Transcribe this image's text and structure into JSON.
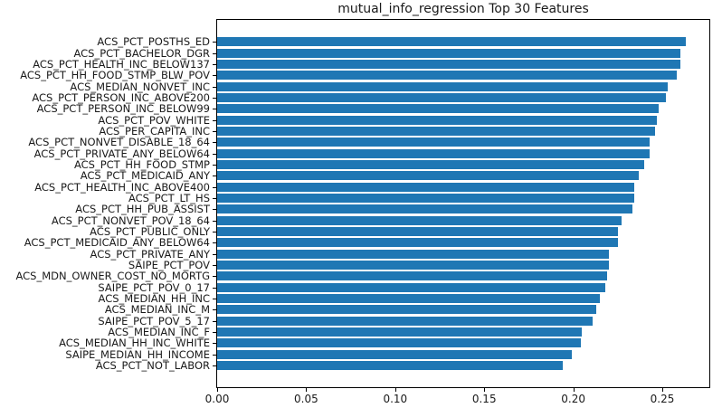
{
  "chart_data": {
    "type": "bar",
    "orientation": "horizontal",
    "title": "mutual_info_regression Top 30 Features",
    "xlabel": "",
    "ylabel": "",
    "grid": false,
    "legend": null,
    "bar_color": "#1f77b4",
    "xlim": [
      0,
      0.2764
    ],
    "xtick_labels": [
      "0.00",
      "0.05",
      "0.10",
      "0.15",
      "0.20",
      "0.25"
    ],
    "xtick_values": [
      0.0,
      0.05,
      0.1,
      0.15,
      0.2,
      0.25
    ],
    "categories": [
      "ACS_PCT_POSTHS_ED",
      "ACS_PCT_BACHELOR_DGR",
      "ACS_PCT_HEALTH_INC_BELOW137",
      "ACS_PCT_HH_FOOD_STMP_BLW_POV",
      "ACS_MEDIAN_NONVET_INC",
      "ACS_PCT_PERSON_INC_ABOVE200",
      "ACS_PCT_PERSON_INC_BELOW99",
      "ACS_PCT_POV_WHITE",
      "ACS_PER_CAPITA_INC",
      "ACS_PCT_NONVET_DISABLE_18_64",
      "ACS_PCT_PRIVATE_ANY_BELOW64",
      "ACS_PCT_HH_FOOD_STMP",
      "ACS_PCT_MEDICAID_ANY",
      "ACS_PCT_HEALTH_INC_ABOVE400",
      "ACS_PCT_LT_HS",
      "ACS_PCT_HH_PUB_ASSIST",
      "ACS_PCT_NONVET_POV_18_64",
      "ACS_PCT_PUBLIC_ONLY",
      "ACS_PCT_MEDICAID_ANY_BELOW64",
      "ACS_PCT_PRIVATE_ANY",
      "SAIPE_PCT_POV",
      "ACS_MDN_OWNER_COST_NO_MORTG",
      "SAIPE_PCT_POV_0_17",
      "ACS_MEDIAN_HH_INC",
      "ACS_MEDIAN_INC_M",
      "SAIPE_PCT_POV_5_17",
      "ACS_MEDIAN_INC_F",
      "ACS_MEDIAN_HH_INC_WHITE",
      "SAIPE_MEDIAN_HH_INCOME",
      "ACS_PCT_NOT_LABOR"
    ],
    "values": [
      0.263,
      0.26,
      0.26,
      0.258,
      0.253,
      0.252,
      0.248,
      0.247,
      0.246,
      0.243,
      0.243,
      0.24,
      0.237,
      0.234,
      0.234,
      0.233,
      0.227,
      0.225,
      0.225,
      0.22,
      0.22,
      0.219,
      0.218,
      0.215,
      0.213,
      0.211,
      0.205,
      0.204,
      0.199,
      0.194
    ]
  }
}
